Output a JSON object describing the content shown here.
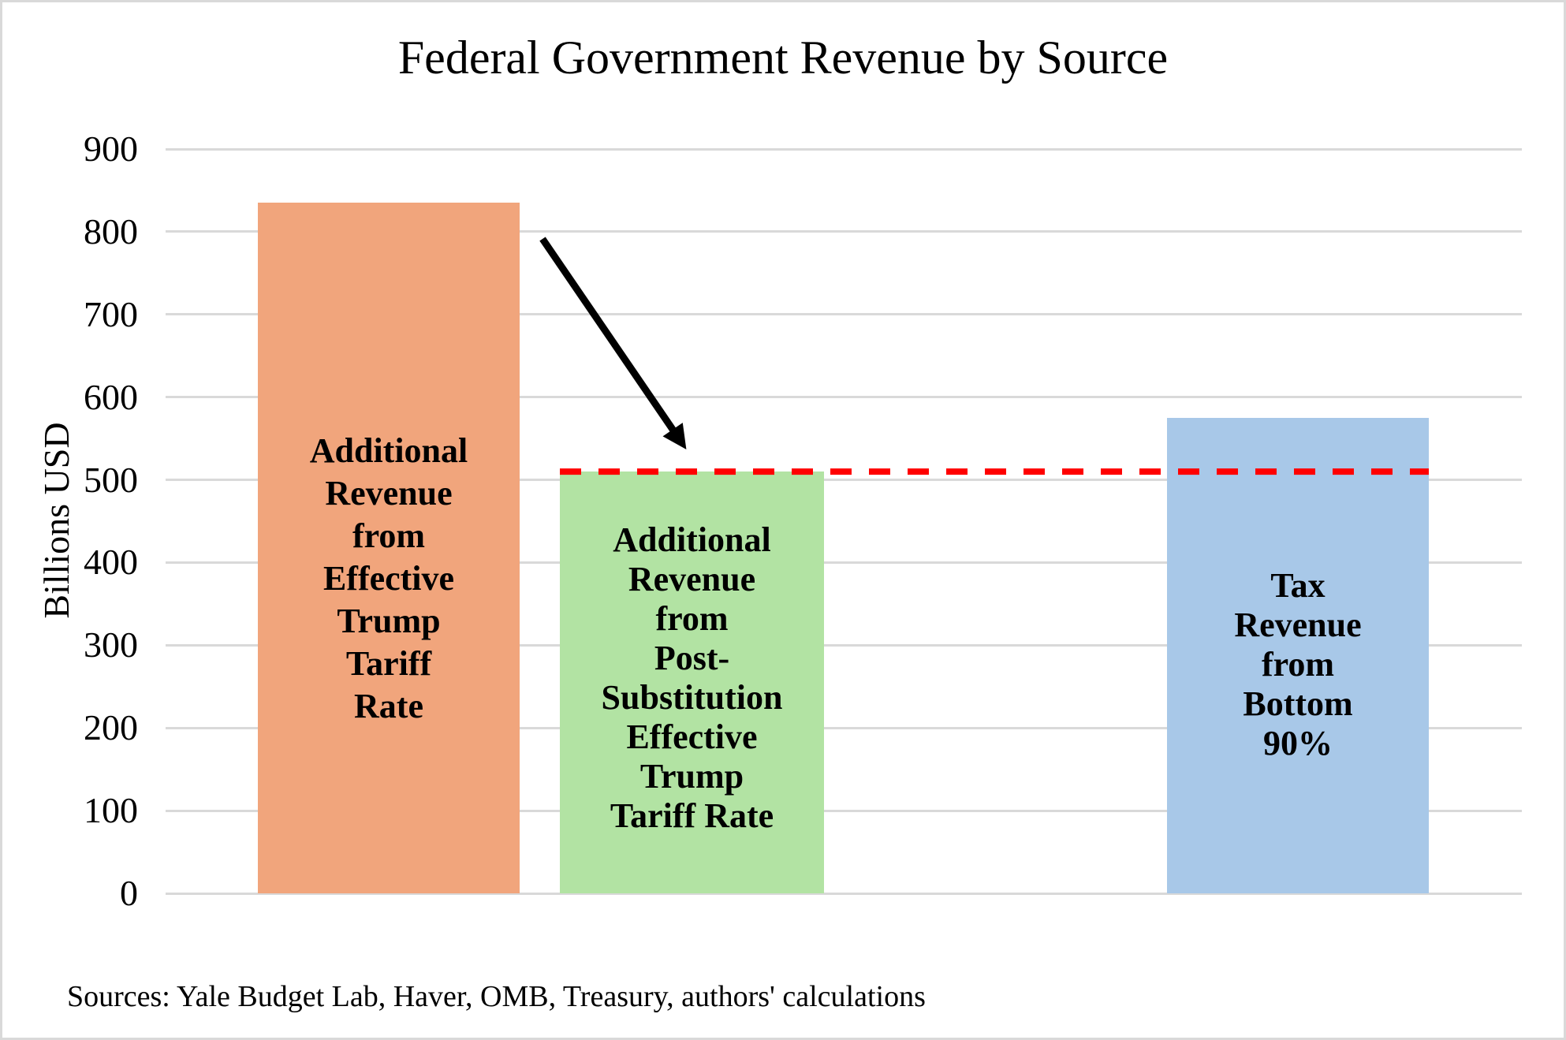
{
  "title": "Federal Government Revenue by Source",
  "source_note": "Sources: Yale Budget Lab, Haver, OMB, Treasury, authors' calculations",
  "chart_data": {
    "type": "bar",
    "title": "Federal Government Revenue by Source",
    "xlabel": "",
    "ylabel": "Billions USD",
    "ylim": [
      0,
      900
    ],
    "yticks": [
      0,
      100,
      200,
      300,
      400,
      500,
      600,
      700,
      800,
      900
    ],
    "grid": "horizontal",
    "legend": "none",
    "categories": [
      "Additional Revenue from Effective Trump Tariff Rate",
      "Additional Revenue from Post-Substitution Effective Trump Tariff Rate",
      "Tax Revenue from Bottom 90%"
    ],
    "values": [
      835,
      510,
      575
    ],
    "bars": [
      {
        "label": "Additional\nRevenue\nfrom\nEffective\nTrump\nTariff\nRate",
        "value": 835,
        "color": "#F1A57C"
      },
      {
        "label": "Additional\nRevenue\nfrom\nPost-\nSubstitution\nEffective\nTrump\nTariff Rate",
        "value": 510,
        "color": "#B2E3A3"
      },
      {
        "label": "Tax\nRevenue\nfrom\nBottom\n90%",
        "value": 575,
        "color": "#A8C8E8"
      }
    ],
    "reference_line": {
      "value": 510,
      "color": "#FF0000",
      "style": "dashed"
    },
    "annotation_arrow": {
      "description": "arrow from top of first bar pointing to top of second bar",
      "color": "#000000"
    }
  },
  "colors": {
    "background": "#FFFFFF",
    "frame_border": "#D9D9D9",
    "gridline": "#D9D9D9",
    "text": "#000000"
  }
}
